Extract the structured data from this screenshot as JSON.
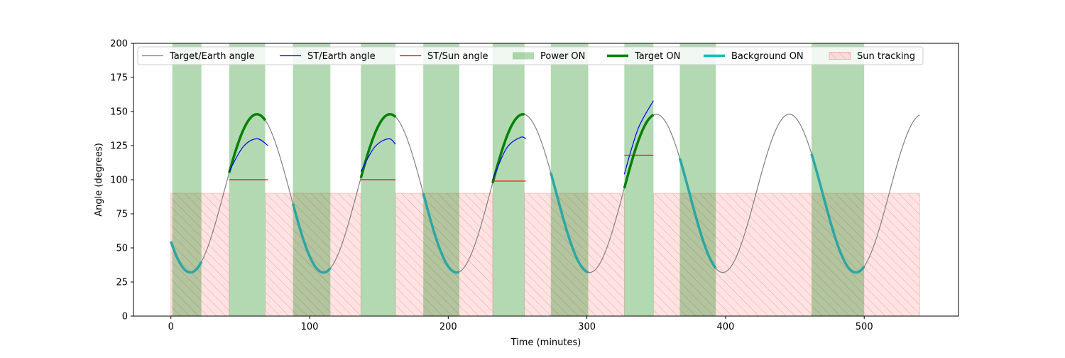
{
  "chart_data": {
    "type": "line",
    "title": "",
    "xlabel": "Time (minutes)",
    "ylabel": "Angle (degrees)",
    "xlim": [
      -27,
      568
    ],
    "ylim": [
      0,
      200
    ],
    "xticks": [
      0,
      100,
      200,
      300,
      400,
      500
    ],
    "yticks": [
      0,
      25,
      50,
      75,
      100,
      125,
      150,
      175,
      200
    ],
    "grid": false,
    "legend_placement": "top",
    "series": [
      {
        "name": "Target/Earth angle",
        "color": "#808080",
        "description": "sinusoid, min ~32, max ~148, period ~96 min",
        "x_range": [
          0,
          540
        ],
        "points": [
          [
            0,
            60
          ],
          [
            14,
            32
          ],
          [
            38,
            96
          ],
          [
            62,
            148
          ],
          [
            86,
            80
          ],
          [
            110,
            32
          ],
          [
            134,
            96
          ],
          [
            158,
            148
          ],
          [
            182,
            80
          ],
          [
            206,
            32
          ],
          [
            230,
            96
          ],
          [
            254,
            148
          ],
          [
            278,
            80
          ],
          [
            302,
            32
          ],
          [
            326,
            96
          ],
          [
            350,
            148
          ],
          [
            374,
            80
          ],
          [
            398,
            32
          ],
          [
            422,
            96
          ],
          [
            446,
            148
          ],
          [
            470,
            80
          ],
          [
            494,
            32
          ],
          [
            518,
            96
          ],
          [
            540,
            134
          ]
        ]
      },
      {
        "name": "ST/Earth angle",
        "color": "#0000ff",
        "segments": [
          [
            [
              42,
              106
            ],
            [
              52,
              124
            ],
            [
              62,
              130
            ],
            [
              70,
              125
            ]
          ],
          [
            [
              137,
              106
            ],
            [
              147,
              124
            ],
            [
              157,
              130
            ],
            [
              162,
              126
            ]
          ],
          [
            [
              232,
              100
            ],
            [
              242,
              123
            ],
            [
              252,
              131
            ],
            [
              256,
              130
            ]
          ],
          [
            [
              327,
              104
            ],
            [
              332,
              122
            ],
            [
              338,
              140
            ],
            [
              348,
              158
            ]
          ]
        ]
      },
      {
        "name": "ST/Sun angle",
        "color": "#ff0000",
        "segments": [
          [
            [
              42,
              100
            ],
            [
              70,
              100
            ]
          ],
          [
            [
              137,
              100
            ],
            [
              162,
              100
            ]
          ],
          [
            [
              232,
              99
            ],
            [
              256,
              99
            ]
          ],
          [
            [
              327,
              118
            ],
            [
              348,
              118
            ]
          ]
        ]
      },
      {
        "name": "Power ON",
        "color": "#008000",
        "spans": [
          [
            1,
            22
          ],
          [
            42,
            68
          ],
          [
            88,
            115
          ],
          [
            137,
            162
          ],
          [
            182,
            208
          ],
          [
            232,
            255
          ],
          [
            274,
            301
          ],
          [
            327,
            348
          ],
          [
            367,
            393
          ],
          [
            462,
            500
          ]
        ]
      },
      {
        "name": "Target ON",
        "color": "#008000",
        "spans": [
          [
            42,
            68
          ],
          [
            137,
            162
          ],
          [
            232,
            255
          ],
          [
            327,
            348
          ]
        ]
      },
      {
        "name": "Background ON",
        "color": "#00bfbf",
        "spans": [
          [
            0,
            22
          ],
          [
            88,
            115
          ],
          [
            182,
            208
          ],
          [
            274,
            301
          ],
          [
            367,
            393
          ],
          [
            462,
            500
          ]
        ]
      },
      {
        "name": "Sun tracking",
        "color": "#ff9999",
        "y_range": [
          0,
          90
        ],
        "spans": [
          [
            0,
            42
          ],
          [
            68,
            137
          ],
          [
            162,
            232
          ],
          [
            255,
            327
          ],
          [
            348,
            540
          ]
        ]
      }
    ]
  }
}
